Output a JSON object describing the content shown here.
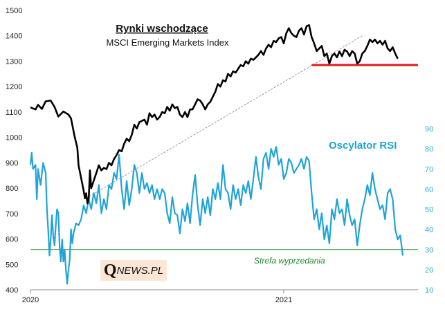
{
  "chart_data": {
    "type": "line",
    "title": "Rynki wschodzące",
    "subtitle": "MSCI Emerging Markets Index",
    "left_axis": {
      "ylim": [
        400,
        1500
      ],
      "ticks": [
        400,
        500,
        600,
        700,
        800,
        900,
        1000,
        1100,
        1200,
        1300,
        1400,
        1500
      ]
    },
    "right_axis": {
      "ylim": [
        10,
        90
      ],
      "ticks": [
        10,
        20,
        30,
        40,
        50,
        60,
        70,
        80,
        90
      ]
    },
    "x_ticks": [
      {
        "label": "2020",
        "t": 0.0
      },
      {
        "label": "2021",
        "t": 1.0
      }
    ],
    "xlim": [
      0.0,
      1.53
    ],
    "series": [
      {
        "name": "MSCI Emerging Markets Index",
        "axis": "left",
        "color": "#000000",
        "points": [
          [
            0.0,
            1118
          ],
          [
            0.02,
            1110
          ],
          [
            0.03,
            1128
          ],
          [
            0.045,
            1112
          ],
          [
            0.06,
            1142
          ],
          [
            0.08,
            1145
          ],
          [
            0.095,
            1120
          ],
          [
            0.11,
            1082
          ],
          [
            0.13,
            1102
          ],
          [
            0.15,
            1090
          ],
          [
            0.16,
            1075
          ],
          [
            0.165,
            1050
          ],
          [
            0.175,
            1000
          ],
          [
            0.185,
            960
          ],
          [
            0.19,
            890
          ],
          [
            0.2,
            840
          ],
          [
            0.21,
            790
          ],
          [
            0.215,
            760
          ],
          [
            0.22,
            780
          ],
          [
            0.225,
            740
          ],
          [
            0.23,
            760
          ],
          [
            0.235,
            870
          ],
          [
            0.24,
            800
          ],
          [
            0.25,
            830
          ],
          [
            0.26,
            860
          ],
          [
            0.27,
            890
          ],
          [
            0.28,
            870
          ],
          [
            0.29,
            880
          ],
          [
            0.3,
            875
          ],
          [
            0.31,
            900
          ],
          [
            0.32,
            890
          ],
          [
            0.33,
            915
          ],
          [
            0.34,
            930
          ],
          [
            0.35,
            950
          ],
          [
            0.36,
            945
          ],
          [
            0.37,
            975
          ],
          [
            0.38,
            995
          ],
          [
            0.39,
            985
          ],
          [
            0.4,
            1010
          ],
          [
            0.41,
            1050
          ],
          [
            0.42,
            1035
          ],
          [
            0.43,
            1060
          ],
          [
            0.44,
            1065
          ],
          [
            0.45,
            1070
          ],
          [
            0.46,
            1050
          ],
          [
            0.47,
            1095
          ],
          [
            0.48,
            1080
          ],
          [
            0.49,
            1090
          ],
          [
            0.5,
            1070
          ],
          [
            0.51,
            1080
          ],
          [
            0.52,
            1100
          ],
          [
            0.53,
            1095
          ],
          [
            0.54,
            1120
          ],
          [
            0.55,
            1105
          ],
          [
            0.56,
            1130
          ],
          [
            0.57,
            1115
          ],
          [
            0.58,
            1120
          ],
          [
            0.59,
            1090
          ],
          [
            0.6,
            1080
          ],
          [
            0.61,
            1100
          ],
          [
            0.62,
            1080
          ],
          [
            0.63,
            1110
          ],
          [
            0.64,
            1110
          ],
          [
            0.65,
            1130
          ],
          [
            0.66,
            1150
          ],
          [
            0.67,
            1145
          ],
          [
            0.68,
            1130
          ],
          [
            0.69,
            1110
          ],
          [
            0.7,
            1130
          ],
          [
            0.71,
            1140
          ],
          [
            0.72,
            1160
          ],
          [
            0.73,
            1180
          ],
          [
            0.74,
            1210
          ],
          [
            0.75,
            1200
          ],
          [
            0.76,
            1225
          ],
          [
            0.77,
            1220
          ],
          [
            0.78,
            1250
          ],
          [
            0.79,
            1240
          ],
          [
            0.8,
            1260
          ],
          [
            0.81,
            1255
          ],
          [
            0.82,
            1270
          ],
          [
            0.83,
            1285
          ],
          [
            0.84,
            1280
          ],
          [
            0.85,
            1300
          ],
          [
            0.86,
            1290
          ],
          [
            0.87,
            1310
          ],
          [
            0.88,
            1305
          ],
          [
            0.89,
            1315
          ],
          [
            0.9,
            1325
          ],
          [
            0.91,
            1340
          ],
          [
            0.92,
            1325
          ],
          [
            0.93,
            1350
          ],
          [
            0.94,
            1365
          ],
          [
            0.95,
            1355
          ],
          [
            0.96,
            1380
          ],
          [
            0.97,
            1375
          ],
          [
            0.98,
            1390
          ],
          [
            0.99,
            1395
          ],
          [
            1.0,
            1370
          ],
          [
            1.01,
            1410
          ],
          [
            1.02,
            1430
          ],
          [
            1.03,
            1410
          ],
          [
            1.04,
            1400
          ],
          [
            1.05,
            1395
          ],
          [
            1.06,
            1420
          ],
          [
            1.07,
            1430
          ],
          [
            1.08,
            1405
          ],
          [
            1.09,
            1438
          ],
          [
            1.1,
            1442
          ],
          [
            1.11,
            1395
          ],
          [
            1.12,
            1370
          ],
          [
            1.13,
            1340
          ],
          [
            1.14,
            1350
          ],
          [
            1.15,
            1360
          ],
          [
            1.16,
            1320
          ],
          [
            1.17,
            1330
          ],
          [
            1.18,
            1290
          ],
          [
            1.19,
            1320
          ],
          [
            1.2,
            1330
          ],
          [
            1.21,
            1315
          ],
          [
            1.22,
            1338
          ],
          [
            1.23,
            1320
          ],
          [
            1.24,
            1345
          ],
          [
            1.25,
            1338
          ],
          [
            1.26,
            1320
          ],
          [
            1.27,
            1340
          ],
          [
            1.28,
            1330
          ],
          [
            1.29,
            1290
          ],
          [
            1.3,
            1300
          ],
          [
            1.31,
            1330
          ],
          [
            1.32,
            1340
          ],
          [
            1.33,
            1360
          ],
          [
            1.34,
            1385
          ],
          [
            1.35,
            1375
          ],
          [
            1.36,
            1385
          ],
          [
            1.37,
            1370
          ],
          [
            1.38,
            1380
          ],
          [
            1.39,
            1365
          ],
          [
            1.4,
            1380
          ],
          [
            1.41,
            1350
          ],
          [
            1.42,
            1340
          ],
          [
            1.43,
            1355
          ],
          [
            1.44,
            1330
          ],
          [
            1.45,
            1310
          ]
        ]
      },
      {
        "name": "Oscylator RSI",
        "axis": "right",
        "color": "#1fa3d9",
        "points": [
          [
            0.0,
            72
          ],
          [
            0.005,
            78
          ],
          [
            0.01,
            70
          ],
          [
            0.02,
            72
          ],
          [
            0.025,
            55
          ],
          [
            0.03,
            70
          ],
          [
            0.035,
            66
          ],
          [
            0.04,
            62
          ],
          [
            0.05,
            73
          ],
          [
            0.06,
            68
          ],
          [
            0.065,
            50
          ],
          [
            0.07,
            40
          ],
          [
            0.075,
            27
          ],
          [
            0.08,
            35
          ],
          [
            0.085,
            47
          ],
          [
            0.09,
            37
          ],
          [
            0.095,
            32
          ],
          [
            0.1,
            42
          ],
          [
            0.105,
            50
          ],
          [
            0.11,
            48
          ],
          [
            0.115,
            32
          ],
          [
            0.12,
            24
          ],
          [
            0.125,
            35
          ],
          [
            0.13,
            24
          ],
          [
            0.135,
            30
          ],
          [
            0.14,
            20
          ],
          [
            0.145,
            13
          ],
          [
            0.15,
            20
          ],
          [
            0.155,
            25
          ],
          [
            0.16,
            40
          ],
          [
            0.165,
            33
          ],
          [
            0.17,
            38
          ],
          [
            0.18,
            43
          ],
          [
            0.19,
            42
          ],
          [
            0.2,
            45
          ],
          [
            0.21,
            52
          ],
          [
            0.22,
            48
          ],
          [
            0.23,
            55
          ],
          [
            0.24,
            50
          ],
          [
            0.25,
            58
          ],
          [
            0.26,
            53
          ],
          [
            0.27,
            62
          ],
          [
            0.28,
            48
          ],
          [
            0.29,
            55
          ],
          [
            0.3,
            50
          ],
          [
            0.31,
            62
          ],
          [
            0.32,
            60
          ],
          [
            0.33,
            68
          ],
          [
            0.34,
            65
          ],
          [
            0.35,
            77
          ],
          [
            0.36,
            60
          ],
          [
            0.37,
            50
          ],
          [
            0.38,
            64
          ],
          [
            0.39,
            52
          ],
          [
            0.4,
            60
          ],
          [
            0.41,
            72
          ],
          [
            0.42,
            68
          ],
          [
            0.43,
            58
          ],
          [
            0.44,
            68
          ],
          [
            0.45,
            60
          ],
          [
            0.46,
            63
          ],
          [
            0.47,
            58
          ],
          [
            0.48,
            62
          ],
          [
            0.49,
            55
          ],
          [
            0.5,
            60
          ],
          [
            0.51,
            55
          ],
          [
            0.52,
            60
          ],
          [
            0.53,
            58
          ],
          [
            0.54,
            48
          ],
          [
            0.55,
            43
          ],
          [
            0.56,
            56
          ],
          [
            0.57,
            48
          ],
          [
            0.58,
            47
          ],
          [
            0.59,
            38
          ],
          [
            0.6,
            50
          ],
          [
            0.61,
            44
          ],
          [
            0.62,
            53
          ],
          [
            0.63,
            43
          ],
          [
            0.64,
            57
          ],
          [
            0.65,
            67
          ],
          [
            0.66,
            52
          ],
          [
            0.67,
            42
          ],
          [
            0.68,
            55
          ],
          [
            0.69,
            48
          ],
          [
            0.7,
            56
          ],
          [
            0.71,
            47
          ],
          [
            0.72,
            60
          ],
          [
            0.73,
            55
          ],
          [
            0.74,
            63
          ],
          [
            0.75,
            55
          ],
          [
            0.76,
            72
          ],
          [
            0.77,
            60
          ],
          [
            0.78,
            58
          ],
          [
            0.79,
            50
          ],
          [
            0.8,
            62
          ],
          [
            0.81,
            55
          ],
          [
            0.82,
            60
          ],
          [
            0.83,
            52
          ],
          [
            0.84,
            62
          ],
          [
            0.85,
            58
          ],
          [
            0.86,
            64
          ],
          [
            0.87,
            55
          ],
          [
            0.88,
            65
          ],
          [
            0.89,
            76
          ],
          [
            0.9,
            66
          ],
          [
            0.91,
            60
          ],
          [
            0.92,
            75
          ],
          [
            0.93,
            78
          ],
          [
            0.94,
            70
          ],
          [
            0.95,
            80
          ],
          [
            0.96,
            76
          ],
          [
            0.97,
            81
          ],
          [
            0.98,
            72
          ],
          [
            0.99,
            75
          ],
          [
            1.0,
            65
          ],
          [
            1.01,
            68
          ],
          [
            1.02,
            75
          ],
          [
            1.03,
            73
          ],
          [
            1.04,
            68
          ],
          [
            1.05,
            70
          ],
          [
            1.06,
            72
          ],
          [
            1.07,
            75
          ],
          [
            1.08,
            70
          ],
          [
            1.09,
            76
          ],
          [
            1.1,
            74
          ],
          [
            1.11,
            58
          ],
          [
            1.12,
            45
          ],
          [
            1.13,
            50
          ],
          [
            1.14,
            40
          ],
          [
            1.15,
            48
          ],
          [
            1.16,
            35
          ],
          [
            1.17,
            42
          ],
          [
            1.18,
            33
          ],
          [
            1.19,
            50
          ],
          [
            1.2,
            45
          ],
          [
            1.21,
            55
          ],
          [
            1.22,
            48
          ],
          [
            1.23,
            50
          ],
          [
            1.24,
            42
          ],
          [
            1.25,
            55
          ],
          [
            1.26,
            47
          ],
          [
            1.27,
            42
          ],
          [
            1.28,
            45
          ],
          [
            1.29,
            32
          ],
          [
            1.3,
            42
          ],
          [
            1.31,
            50
          ],
          [
            1.32,
            55
          ],
          [
            1.33,
            62
          ],
          [
            1.34,
            57
          ],
          [
            1.35,
            68
          ],
          [
            1.36,
            60
          ],
          [
            1.37,
            55
          ],
          [
            1.38,
            50
          ],
          [
            1.39,
            52
          ],
          [
            1.4,
            45
          ],
          [
            1.41,
            58
          ],
          [
            1.42,
            60
          ],
          [
            1.43,
            55
          ],
          [
            1.44,
            40
          ],
          [
            1.45,
            35
          ],
          [
            1.46,
            37
          ],
          [
            1.47,
            27
          ]
        ]
      }
    ],
    "annotations": {
      "rsi_label": "Oscylator RSI",
      "oversold_label": "Strefa wyprzedania",
      "oversold_level": 30,
      "support_level": 1285,
      "support_range": [
        1.11,
        1.53
      ],
      "trendline": [
        [
          0.22,
          760
        ],
        [
          1.31,
          1400
        ]
      ]
    },
    "colors": {
      "index": "#000000",
      "rsi": "#1fa3d9",
      "oversold": "#1f8a2e",
      "support": "#e01b1b",
      "trend": "#999999"
    }
  },
  "logo": {
    "q": "Q",
    "rest": "NEWS.PL"
  }
}
